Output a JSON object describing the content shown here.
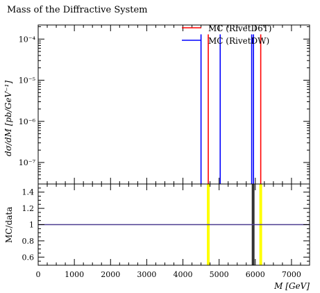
{
  "chart_data": {
    "type": "line",
    "title": "Mass of the Diffractive System",
    "xlabel": "M [GeV]",
    "ylabel": "dσ/dM [pb/GeV⁻¹]",
    "ratio_ylabel": "MC/data",
    "xlim": [
      0,
      7500
    ],
    "ylim": [
      3e-08,
      0.00022
    ],
    "yscale": "log",
    "ratio_ylim": [
      0.5,
      1.5
    ],
    "x_ticks": [
      0,
      1000,
      2000,
      3000,
      4000,
      5000,
      6000,
      7000
    ],
    "x_tick_labels": [
      "0",
      "1000",
      "2000",
      "3000",
      "4000",
      "5000",
      "6000",
      "7000"
    ],
    "y_ticks": [
      1e-07,
      1e-06,
      1e-05,
      0.0001
    ],
    "y_tick_labels": [
      "10⁻⁷",
      "10⁻⁶",
      "10⁻⁵",
      "10⁻⁴"
    ],
    "ratio_ticks": [
      0.6,
      0.8,
      1.0,
      1.2,
      1.4
    ],
    "ratio_tick_labels": [
      "0.6",
      "0.8",
      "1",
      "1.2",
      "1.4"
    ],
    "legend_position": "top-right",
    "series": [
      {
        "name": "MC (RivetD6T)",
        "color": "#ff0000",
        "spikes": [
          {
            "x": 4700,
            "y": 0.00013
          },
          {
            "x": 6150,
            "y": 0.00013
          }
        ]
      },
      {
        "name": "MC (RivetDW)",
        "color": "#0000ff",
        "spikes": [
          {
            "x": 4500,
            "y": 0.00013
          },
          {
            "x": 5030,
            "y": 0.00013
          },
          {
            "x": 5900,
            "y": 0.00013
          },
          {
            "x": 5950,
            "y": 0.00013
          }
        ]
      }
    ],
    "ratio": {
      "line_value": 1.0,
      "line_color": "#4b3b8f",
      "bands": [
        {
          "x": 4700,
          "color": "#ffff00"
        },
        {
          "x": 5940,
          "color": "#333333"
        },
        {
          "x": 6150,
          "color": "#ffff00"
        }
      ]
    }
  }
}
